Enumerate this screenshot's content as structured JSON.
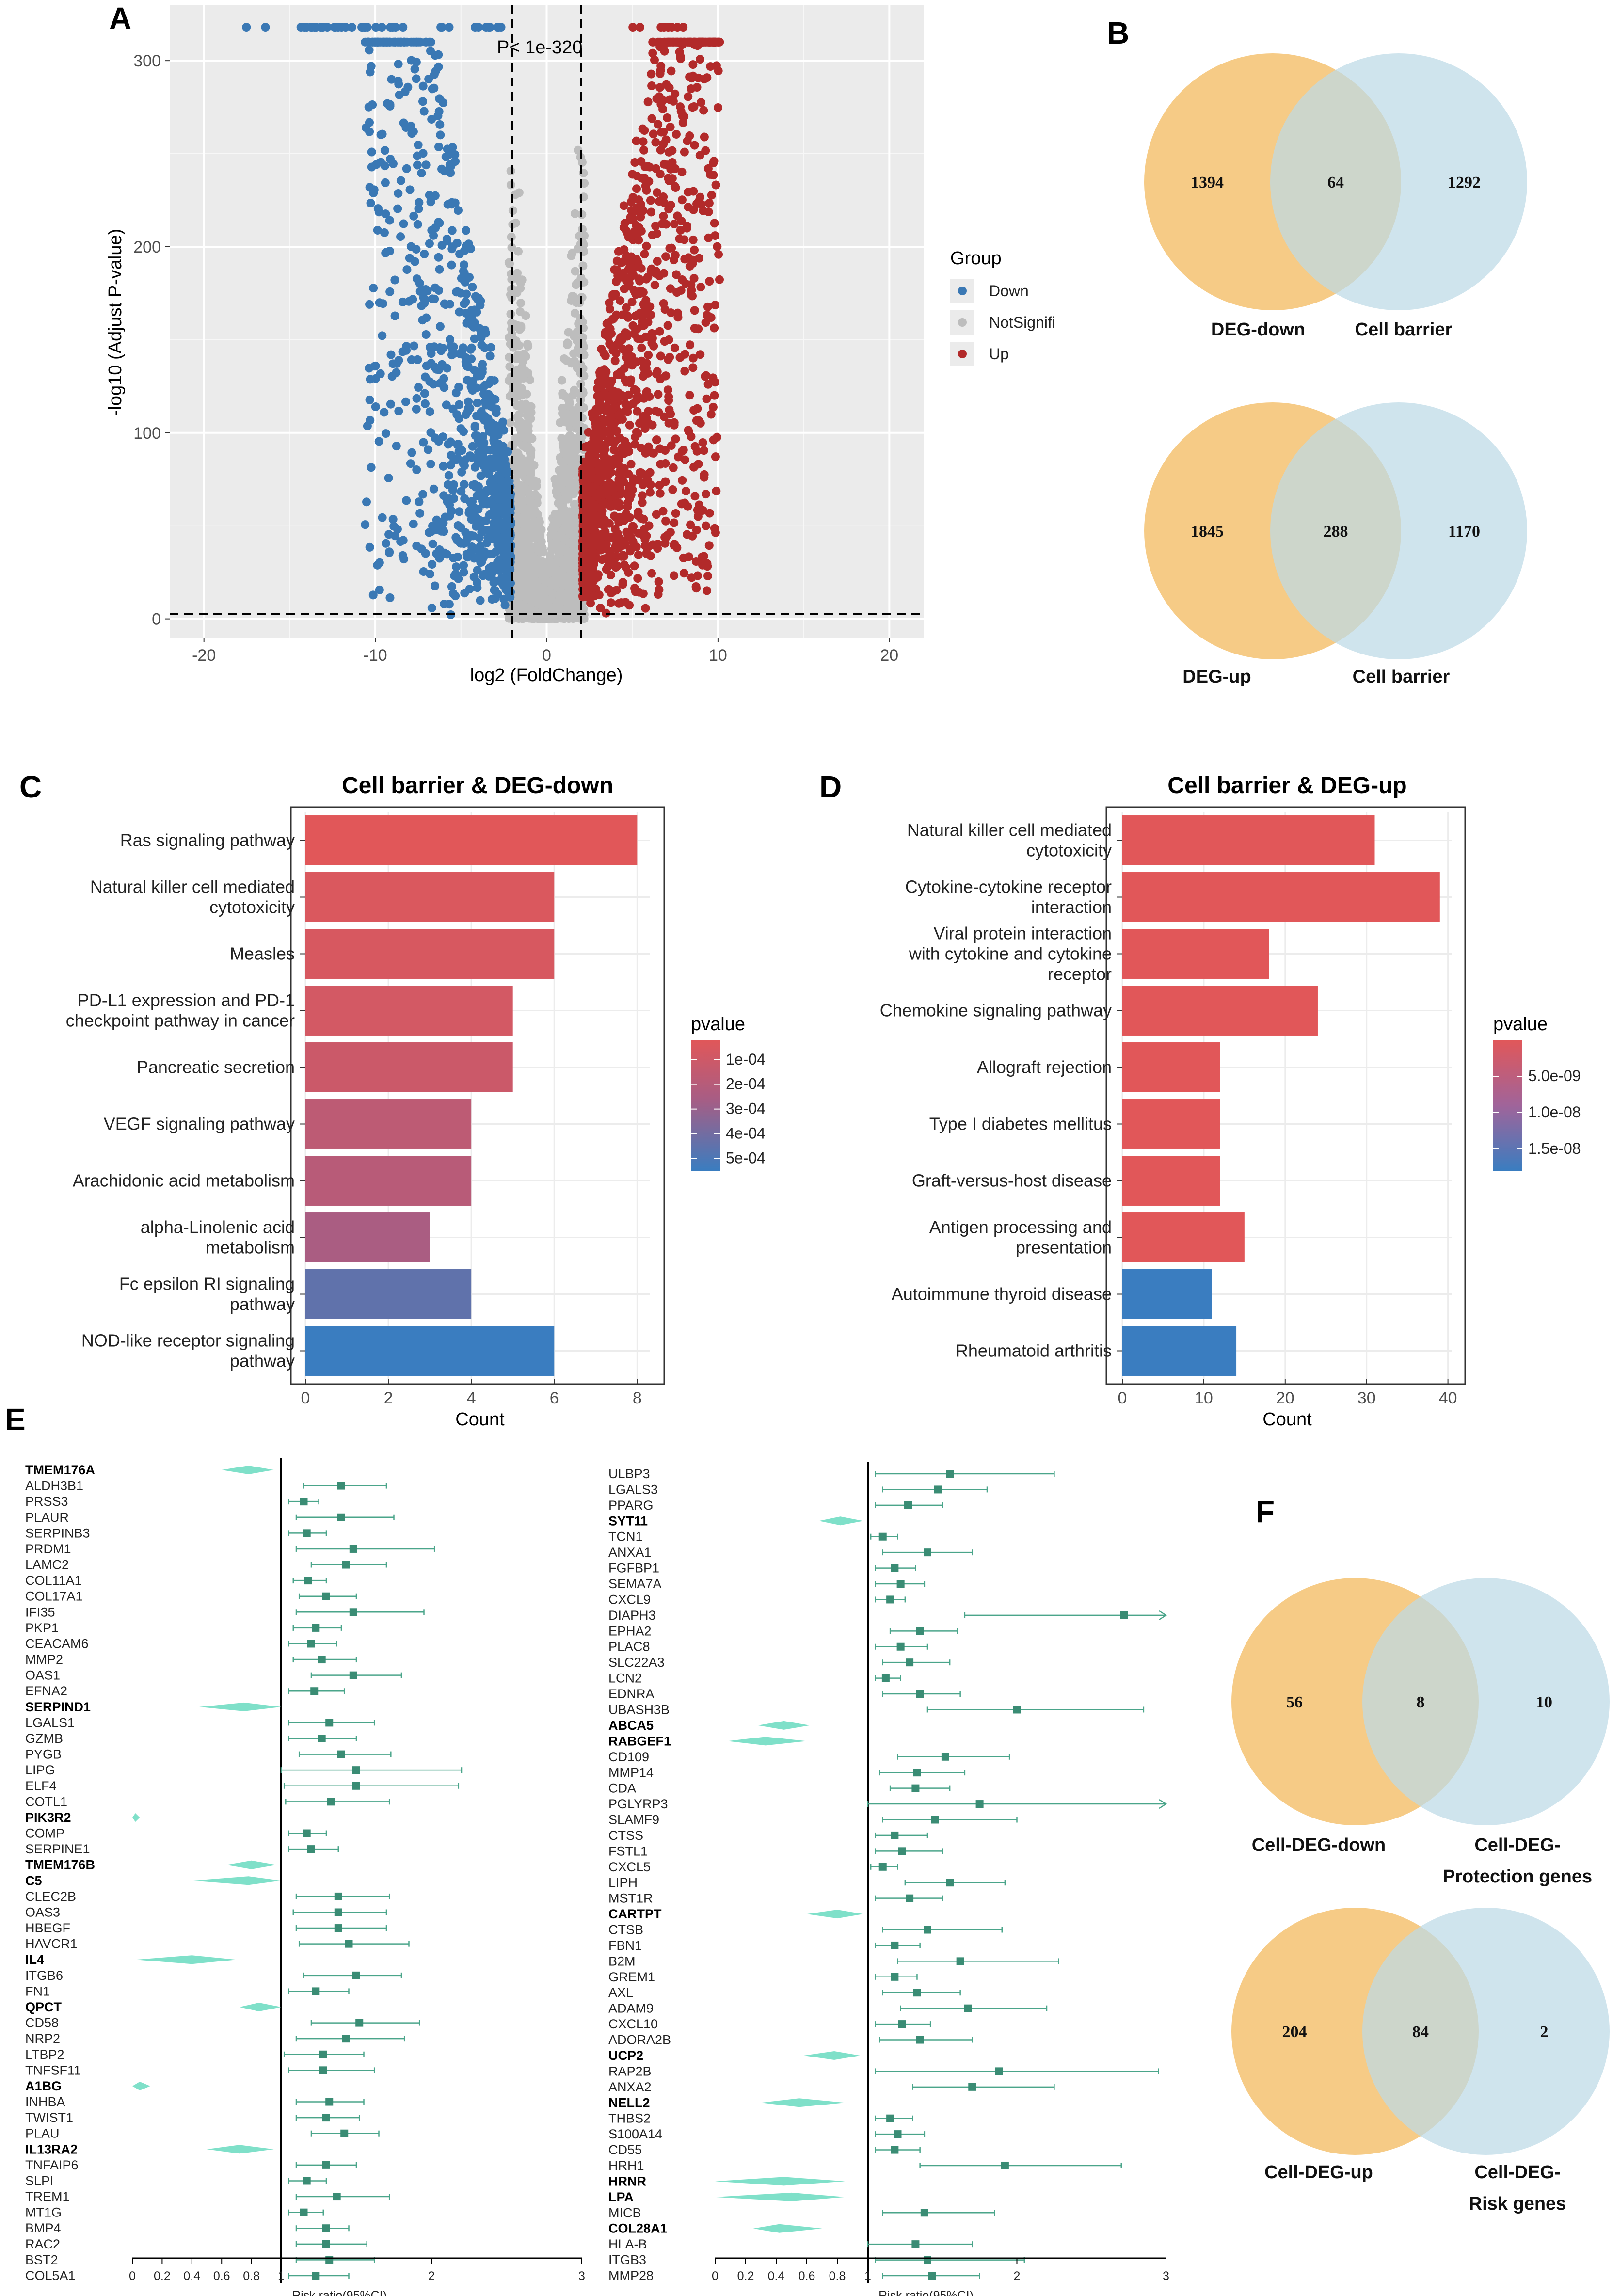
{
  "panel_labels": [
    "A",
    "B",
    "C",
    "D",
    "E",
    "F"
  ],
  "colors": {
    "down": "#3a78b4",
    "notsig": "#bdbdbd",
    "up": "#b22a2a",
    "venn_left": "#f5c77c",
    "venn_right": "#bcd9e6",
    "venn_overlap": "#ccc3a0",
    "forest": "#4aa58a",
    "forest_diamond": "#7fe0c9",
    "panel_bg": "#ebebeb",
    "grad_red": "#e15759",
    "grad_blue": "#3a7dc0"
  },
  "chart_data": [
    {
      "panel": "A",
      "type": "scatter",
      "title": "",
      "xlabel": "log2 (FoldChange)",
      "ylabel": "-log10 (Adjust P-value)",
      "xlim": [
        -22,
        22
      ],
      "ylim": [
        -10,
        330
      ],
      "xticks": [
        "-20",
        "-10",
        "0",
        "10",
        "20"
      ],
      "yticks": [
        "0",
        "100",
        "200",
        "300"
      ],
      "annotation": "P< 1e-320",
      "threshold_lines": {
        "x": [
          -2,
          2
        ],
        "y": 2.5
      },
      "legend_title": "Group",
      "legend": [
        "Down",
        "NotSignifi",
        "Up"
      ]
    },
    {
      "panel": "C",
      "type": "bar",
      "title": "Cell barrier & DEG-down",
      "xlabel": "Count",
      "xlim": [
        0,
        8.3
      ],
      "xticks": [
        "0",
        "2",
        "4",
        "6",
        "8"
      ],
      "categories": [
        "Ras signaling pathway",
        "Natural killer cell mediated|cytotoxicity",
        "Measles",
        "PD-L1 expression and PD-1|checkpoint pathway in cancer",
        "Pancreatic secretion",
        "VEGF signaling pathway",
        "Arachidonic acid metabolism",
        "alpha-Linolenic acid|metabolism",
        "Fc epsilon RI signaling|pathway",
        "NOD-like receptor signaling|pathway"
      ],
      "values": [
        8,
        6,
        6,
        5,
        5,
        4,
        4,
        3,
        4,
        6
      ],
      "pvalues": [
        2e-05,
        5e-05,
        6e-05,
        8e-05,
        0.00011,
        0.00017,
        0.00019,
        0.00025,
        0.00045,
        0.00055
      ],
      "color_legend_title": "pvalue",
      "color_scale": {
        "min": 2e-05,
        "max": 0.00055,
        "labels": [
          "1e-04",
          "2e-04",
          "3e-04",
          "4e-04",
          "5e-04"
        ],
        "label_values": [
          0.0001,
          0.0002,
          0.0003,
          0.0004,
          0.0005
        ]
      }
    },
    {
      "panel": "D",
      "type": "bar",
      "title": "Cell barrier & DEG-up",
      "xlabel": "Count",
      "xlim": [
        0,
        40.5
      ],
      "xticks": [
        "0",
        "10",
        "20",
        "30",
        "40"
      ],
      "categories": [
        "Natural killer cell mediated|cytotoxicity",
        "Cytokine-cytokine receptor|interaction",
        "Viral protein interaction|with cytokine and cytokine|receptor",
        "Chemokine signaling pathway",
        "Allograft rejection",
        "Type I diabetes mellitus",
        "Graft-versus-host disease",
        "Antigen processing and|presentation",
        "Autoimmune thyroid disease",
        "Rheumatoid arthritis"
      ],
      "values": [
        31,
        39,
        18,
        24,
        12,
        12,
        12,
        15,
        11,
        14
      ],
      "pvalues": [
        1e-12,
        1e-12,
        1e-12,
        1e-12,
        1e-12,
        1e-12,
        1e-12,
        1e-12,
        1.8e-08,
        1.8e-08
      ],
      "color_legend_title": "pvalue",
      "color_scale": {
        "min": 0,
        "max": 1.8e-08,
        "labels": [
          "5.0e-09",
          "1.0e-08",
          "1.5e-08"
        ],
        "label_values": [
          5e-09,
          1e-08,
          1.5e-08
        ]
      }
    },
    {
      "panel": "E-left",
      "type": "forest",
      "xlabel": "Risk ratio(95%CI)",
      "xticks": [
        "0",
        "0.2",
        "0.4",
        "0.6",
        "0.8",
        "1",
        "2",
        "3"
      ],
      "genes": [
        "TMEM176A",
        "ALDH3B1",
        "PRSS3",
        "PLAUR",
        "SERPINB3",
        "PRDM1",
        "LAMC2",
        "COL11A1",
        "COL17A1",
        "IFI35",
        "PKP1",
        "CEACAM6",
        "MMP2",
        "OAS1",
        "EFNA2",
        "SERPIND1",
        "LGALS1",
        "GZMB",
        "PYGB",
        "LIPG",
        "ELF4",
        "COTL1",
        "PIK3R2",
        "COMP",
        "SERPINE1",
        "TMEM176B",
        "C5",
        "CLEC2B",
        "OAS3",
        "HBEGF",
        "HAVCR1",
        "IL4",
        "ITGB6",
        "FN1",
        "QPCT",
        "CD58",
        "NRP2",
        "LTBP2",
        "TNFSF11",
        "A1BG",
        "INHBA",
        "TWIST1",
        "PLAU",
        "IL13RA2",
        "TNFAIP6",
        "SLPI",
        "TREM1",
        "MT1G",
        "BMP4",
        "RAC2",
        "BST2",
        "COL5A1"
      ],
      "bold": [
        "TMEM176A",
        "SERPIND1",
        "PIK3R2",
        "TMEM176B",
        "C5",
        "IL4",
        "QPCT",
        "A1BG",
        "IL13RA2"
      ],
      "estimates": [
        0.78,
        1.4,
        1.15,
        1.4,
        1.17,
        1.48,
        1.43,
        1.18,
        1.3,
        1.48,
        1.23,
        1.2,
        1.27,
        1.48,
        1.22,
        0.75,
        1.32,
        1.27,
        1.4,
        1.5,
        1.5,
        1.33,
        0.02,
        1.17,
        1.2,
        0.8,
        0.78,
        1.38,
        1.38,
        1.38,
        1.45,
        0.4,
        1.5,
        1.23,
        0.85,
        1.52,
        1.43,
        1.28,
        1.28,
        0.05,
        1.32,
        1.3,
        1.42,
        0.72,
        1.3,
        1.17,
        1.37,
        1.15,
        1.3,
        1.3,
        1.32,
        1.23
      ],
      "lower": [
        0.6,
        1.15,
        1.05,
        1.1,
        1.05,
        1.1,
        1.2,
        1.08,
        1.12,
        1.1,
        1.08,
        1.05,
        1.08,
        1.2,
        1.05,
        0.45,
        1.05,
        1.05,
        1.12,
        1.0,
        1.02,
        1.03,
        0.0,
        1.05,
        1.05,
        0.63,
        0.4,
        1.1,
        1.08,
        1.1,
        1.12,
        0.02,
        1.15,
        1.05,
        0.72,
        1.2,
        1.1,
        1.02,
        1.05,
        0.0,
        1.1,
        1.1,
        1.2,
        0.5,
        1.1,
        1.05,
        1.1,
        1.05,
        1.1,
        1.1,
        1.1,
        1.05
      ],
      "upper": [
        0.95,
        1.7,
        1.25,
        1.75,
        1.3,
        2.02,
        1.7,
        1.3,
        1.5,
        1.95,
        1.4,
        1.37,
        1.5,
        1.8,
        1.42,
        1.0,
        1.62,
        1.5,
        1.73,
        2.2,
        2.18,
        1.72,
        0.05,
        1.3,
        1.38,
        0.97,
        1.0,
        1.72,
        1.7,
        1.7,
        1.85,
        0.7,
        1.8,
        1.45,
        1.0,
        1.92,
        1.82,
        1.55,
        1.62,
        0.12,
        1.55,
        1.52,
        1.65,
        0.95,
        1.5,
        1.3,
        1.72,
        1.28,
        1.45,
        1.57,
        1.62,
        1.45
      ]
    },
    {
      "panel": "E-right",
      "type": "forest",
      "xlabel": "Risk ratio(95%CI)",
      "xticks": [
        "0",
        "0.2",
        "0.4",
        "0.6",
        "0.8",
        "1",
        "2",
        "3"
      ],
      "genes": [
        "ULBP3",
        "LGALS3",
        "PPARG",
        "SYT11",
        "TCN1",
        "ANXA1",
        "FGFBP1",
        "SEMA7A",
        "CXCL9",
        "DIAPH3",
        "EPHA2",
        "PLAC8",
        "SLC22A3",
        "LCN2",
        "EDNRA",
        "UBASH3B",
        "ABCA5",
        "RABGEF1",
        "CD109",
        "MMP14",
        "CDA",
        "PGLYRP3",
        "SLAMF9",
        "CTSS",
        "FSTL1",
        "CXCL5",
        "LIPH",
        "MST1R",
        "CARTPT",
        "CTSB",
        "FBN1",
        "B2M",
        "GREM1",
        "AXL",
        "ADAM9",
        "CXCL10",
        "ADORA2B",
        "UCP2",
        "RAP2B",
        "ANXA2",
        "NELL2",
        "THBS2",
        "S100A14",
        "CD55",
        "HRH1",
        "HRNR",
        "LPA",
        "MICB",
        "COL28A1",
        "HLA-B",
        "ITGB3",
        "MMP28"
      ],
      "bold": [
        "SYT11",
        "ABCA5",
        "RABGEF1",
        "CARTPT",
        "UCP2",
        "NELL2",
        "HRNR",
        "LPA",
        "COL28A1"
      ],
      "estimates": [
        1.55,
        1.47,
        1.27,
        0.82,
        1.1,
        1.4,
        1.18,
        1.22,
        1.15,
        2.72,
        1.35,
        1.22,
        1.28,
        1.12,
        1.35,
        2.0,
        0.45,
        0.33,
        1.52,
        1.33,
        1.32,
        1.75,
        1.45,
        1.18,
        1.23,
        1.1,
        1.55,
        1.28,
        0.8,
        1.4,
        1.18,
        1.62,
        1.18,
        1.33,
        1.67,
        1.23,
        1.35,
        0.78,
        1.88,
        1.7,
        0.55,
        1.15,
        1.2,
        1.18,
        1.92,
        0.45,
        0.5,
        1.38,
        0.42,
        1.32,
        1.4,
        1.43
      ],
      "lower": [
        1.05,
        1.1,
        1.05,
        0.68,
        1.02,
        1.1,
        1.05,
        1.05,
        1.05,
        1.65,
        1.15,
        1.05,
        1.1,
        1.05,
        1.1,
        1.4,
        0.28,
        0.08,
        1.2,
        1.08,
        1.15,
        1.0,
        1.1,
        1.05,
        1.05,
        1.02,
        1.25,
        1.05,
        0.6,
        1.1,
        1.05,
        1.2,
        1.05,
        1.1,
        1.22,
        1.05,
        1.08,
        0.58,
        1.05,
        1.3,
        0.3,
        1.05,
        1.05,
        1.05,
        1.35,
        0.0,
        0.0,
        1.1,
        0.25,
        1.0,
        1.05,
        1.1
      ],
      "upper": [
        2.25,
        1.8,
        1.5,
        0.97,
        1.2,
        1.7,
        1.32,
        1.38,
        1.25,
        3.0,
        1.6,
        1.4,
        1.55,
        1.22,
        1.62,
        2.85,
        0.62,
        0.6,
        1.95,
        1.65,
        1.55,
        3.0,
        2.0,
        1.4,
        1.5,
        1.2,
        1.92,
        1.5,
        0.97,
        1.9,
        1.35,
        2.28,
        1.33,
        1.62,
        2.2,
        1.42,
        1.7,
        0.95,
        2.95,
        2.25,
        0.85,
        1.3,
        1.38,
        1.35,
        2.7,
        0.85,
        0.85,
        1.85,
        0.7,
        1.7,
        2.05,
        1.75
      ]
    }
  ],
  "venn_B": [
    {
      "left_value": "1394",
      "overlap_value": "64",
      "right_value": "1292",
      "left_label": "DEG-down",
      "right_label": "Cell barrier"
    },
    {
      "left_value": "1845",
      "overlap_value": "288",
      "right_value": "1170",
      "left_label": "DEG-up",
      "right_label": "Cell barrier"
    }
  ],
  "venn_F": [
    {
      "left_value": "56",
      "overlap_value": "8",
      "right_value": "10",
      "left_label": "Cell-DEG-down",
      "right_label_1": "Cell-DEG-",
      "right_label_2": "Protection genes"
    },
    {
      "left_value": "204",
      "overlap_value": "84",
      "right_value": "2",
      "left_label": "Cell-DEG-up",
      "right_label_1": "Cell-DEG-",
      "right_label_2": "Risk genes"
    }
  ]
}
